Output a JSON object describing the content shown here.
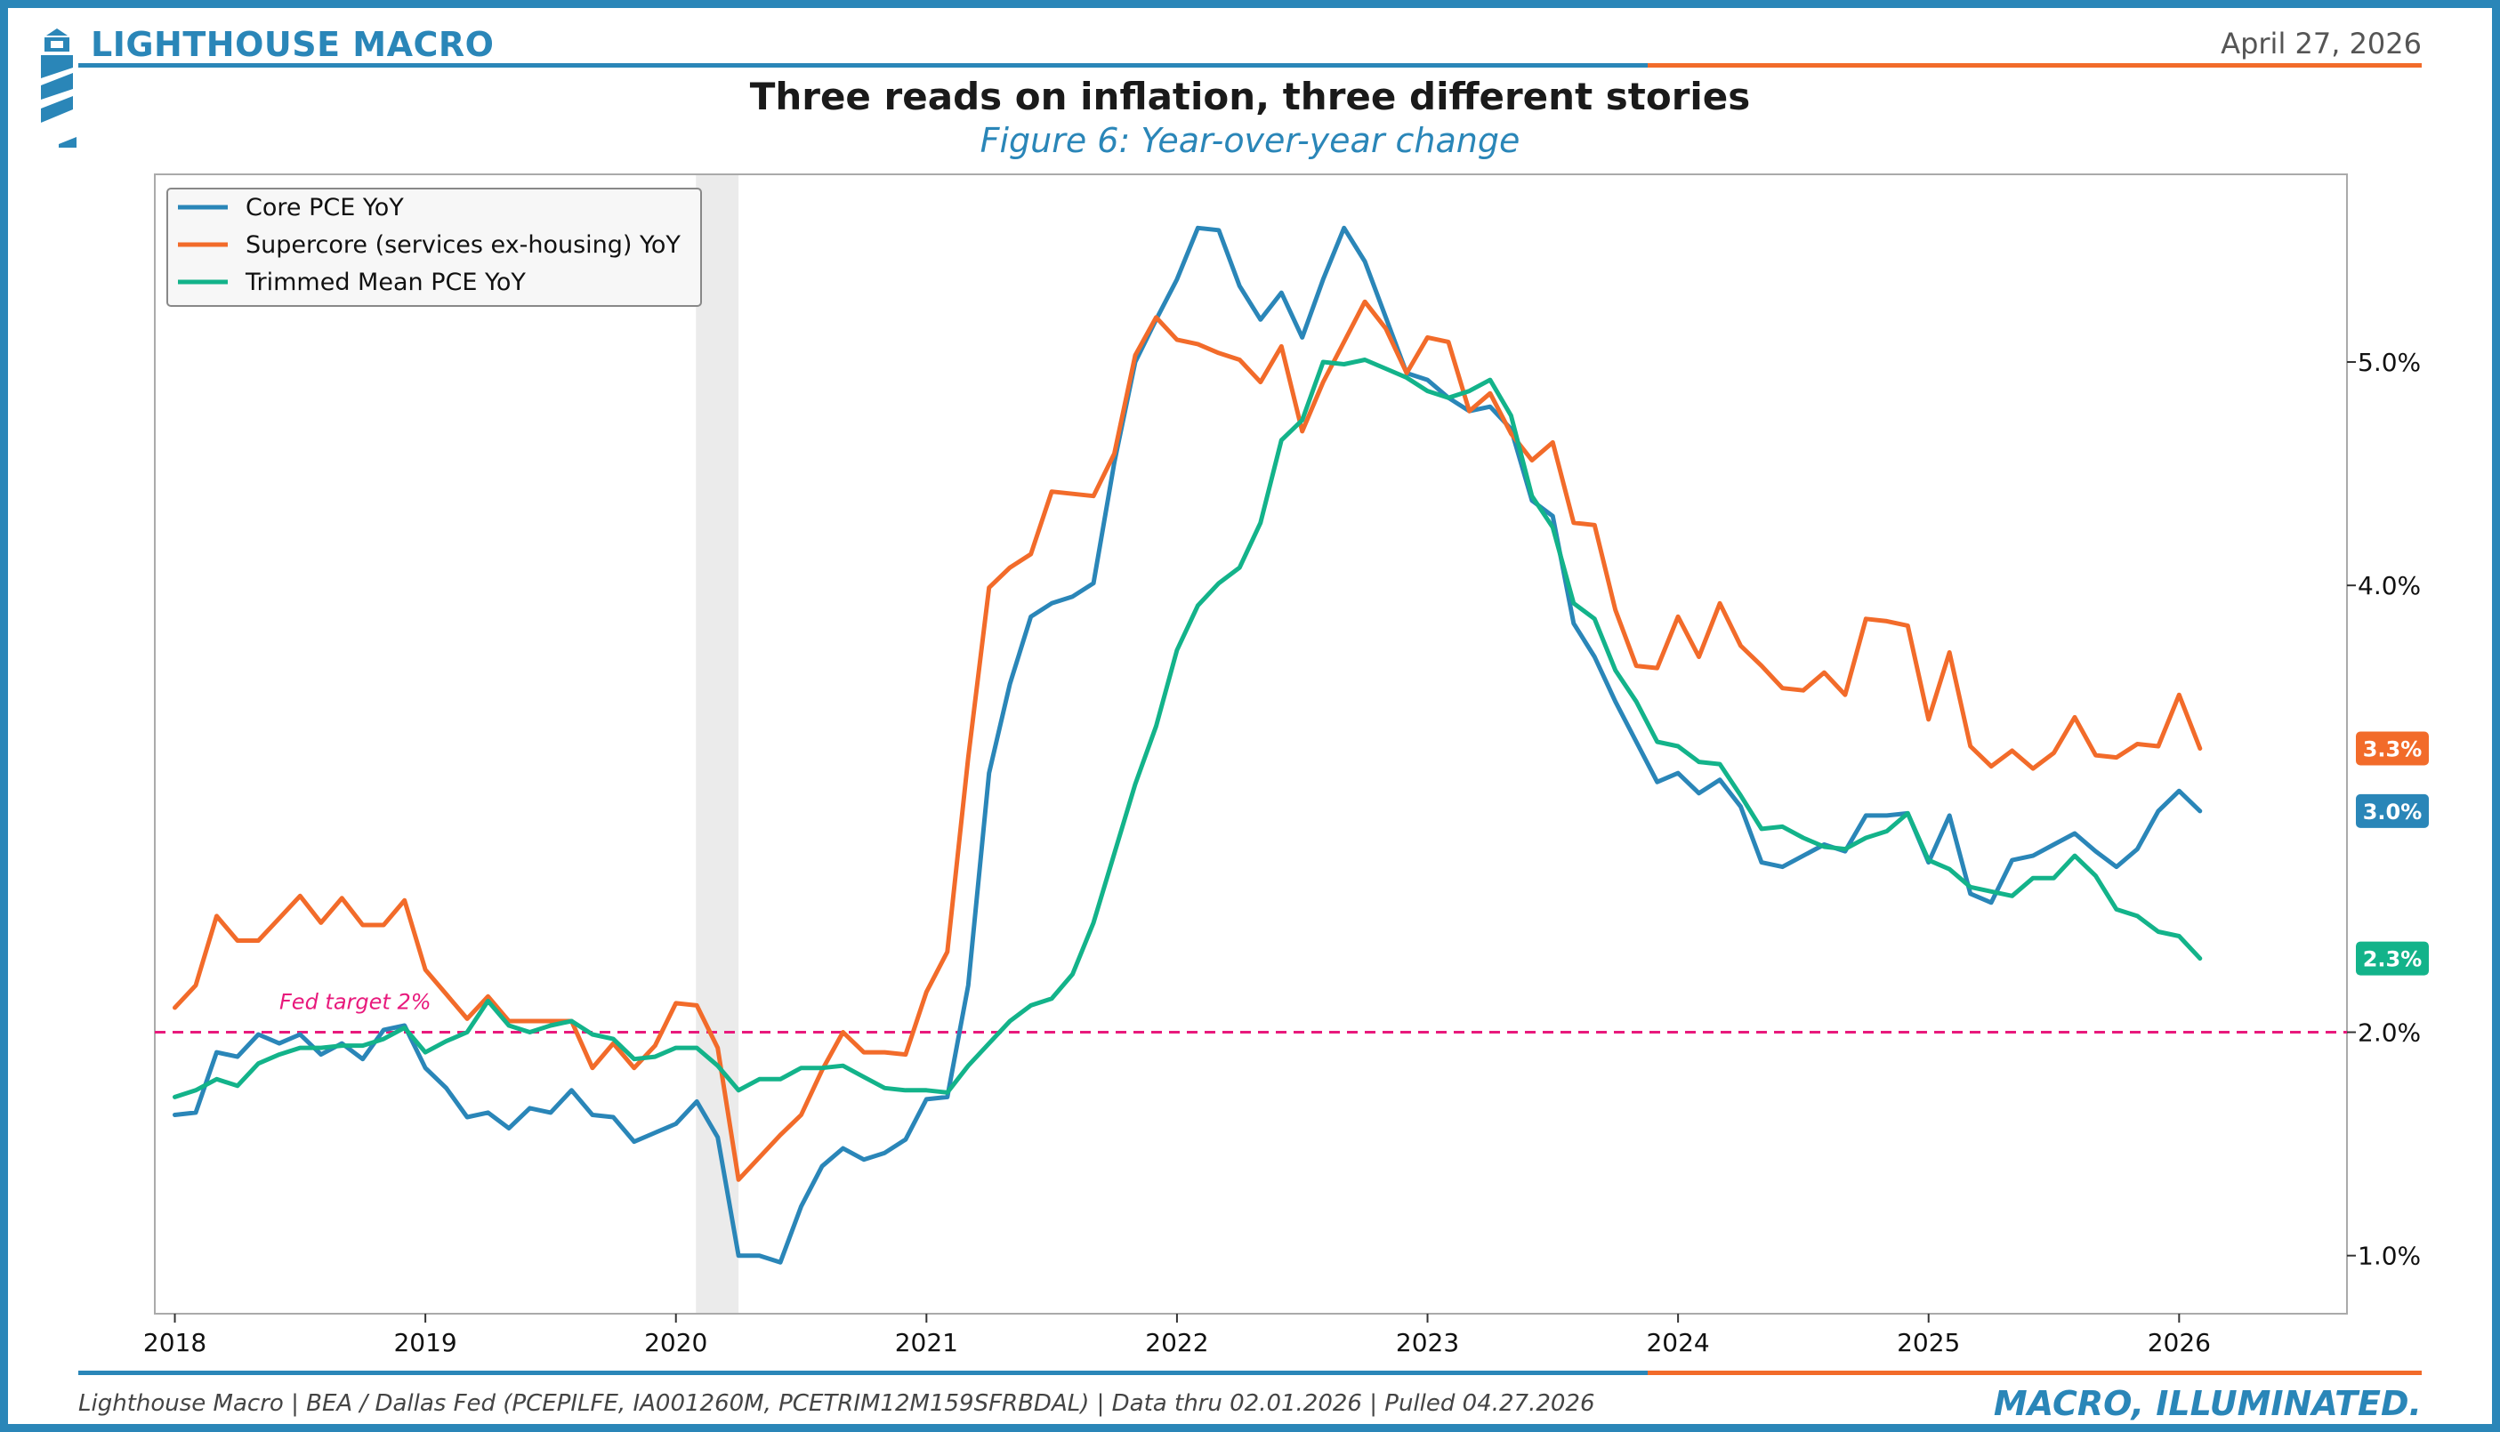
{
  "header": {
    "brand": "LIGHTHOUSE MACRO",
    "date": "April 27, 2026",
    "title": "Three reads on inflation, three different stories",
    "subtitle": "Figure 6: Year-over-year change"
  },
  "footer": {
    "source": "Lighthouse Macro | BEA / Dallas Fed (PCEPILFE, IA001260M, PCETRIM12M159SFRBDAL) | Data thru 02.01.2026 | Pulled 04.27.2026",
    "tagline": "MACRO, ILLUMINATED."
  },
  "colors": {
    "brand_blue": "#2a86b8",
    "brand_orange": "#f26b2a",
    "green": "#13b38a",
    "target_pink": "#e8197c",
    "recession_shade": "#ebebeb"
  },
  "icons": {
    "logo": "lighthouse-icon"
  },
  "chart_data": {
    "type": "line",
    "title": "Three reads on inflation, three different stories",
    "subtitle": "Figure 6: Year-over-year change",
    "xlabel": "",
    "ylabel": "",
    "x_start": "2018-01",
    "frequency": "monthly",
    "xlim": [
      2017.92,
      2026.67
    ],
    "ylim": [
      0.74,
      5.84
    ],
    "x_ticks": [
      {
        "value": 2018,
        "label": "2018"
      },
      {
        "value": 2019,
        "label": "2019"
      },
      {
        "value": 2020,
        "label": "2020"
      },
      {
        "value": 2021,
        "label": "2021"
      },
      {
        "value": 2022,
        "label": "2022"
      },
      {
        "value": 2023,
        "label": "2023"
      },
      {
        "value": 2024,
        "label": "2024"
      },
      {
        "value": 2025,
        "label": "2025"
      },
      {
        "value": 2026,
        "label": "2026"
      }
    ],
    "y_ticks": [
      {
        "value": 1.0,
        "label": "1.0%"
      },
      {
        "value": 2.0,
        "label": "2.0%"
      },
      {
        "value": 4.0,
        "label": "4.0%"
      },
      {
        "value": 5.0,
        "label": "5.0%"
      }
    ],
    "y_axis_side": "right",
    "grid": false,
    "legend_position": "top-left",
    "recession": {
      "start": 2020.08,
      "end": 2020.25
    },
    "reference_line": {
      "value": 2.0,
      "label": "Fed target 2%"
    },
    "series": [
      {
        "name": "Core PCE YoY",
        "color": "#2a86b8",
        "last_label": "3.0%",
        "values": [
          1.63,
          1.64,
          1.91,
          1.89,
          1.99,
          1.95,
          1.99,
          1.9,
          1.95,
          1.88,
          2.01,
          2.03,
          1.84,
          1.75,
          1.62,
          1.64,
          1.57,
          1.66,
          1.64,
          1.74,
          1.63,
          1.62,
          1.51,
          1.55,
          1.59,
          1.69,
          1.53,
          1.0,
          1.0,
          0.97,
          1.22,
          1.4,
          1.48,
          1.43,
          1.46,
          1.52,
          1.7,
          1.71,
          2.21,
          3.16,
          3.56,
          3.86,
          3.92,
          3.95,
          4.01,
          4.55,
          5.0,
          5.19,
          5.37,
          5.6,
          5.59,
          5.34,
          5.19,
          5.31,
          5.11,
          5.37,
          5.6,
          5.45,
          5.2,
          4.95,
          4.92,
          4.84,
          4.78,
          4.8,
          4.7,
          4.38,
          4.31,
          3.83,
          3.68,
          3.48,
          3.3,
          3.12,
          3.16,
          3.07,
          3.13,
          3.01,
          2.76,
          2.74,
          2.79,
          2.84,
          2.81,
          2.97,
          2.97,
          2.98,
          2.76,
          2.97,
          2.62,
          2.58,
          2.77,
          2.79,
          2.84,
          2.89,
          2.81,
          2.74,
          2.82,
          2.99,
          3.08,
          2.99
        ]
      },
      {
        "name": "Supercore (services ex-housing) YoY",
        "color": "#f26b2a",
        "last_label": "3.3%",
        "values": [
          2.11,
          2.21,
          2.52,
          2.41,
          2.41,
          2.51,
          2.61,
          2.49,
          2.6,
          2.48,
          2.48,
          2.59,
          2.28,
          2.17,
          2.06,
          2.16,
          2.05,
          2.05,
          2.05,
          2.05,
          1.84,
          1.95,
          1.84,
          1.94,
          2.13,
          2.12,
          1.93,
          1.34,
          1.44,
          1.54,
          1.63,
          1.83,
          2.0,
          1.91,
          1.91,
          1.9,
          2.18,
          2.36,
          3.23,
          3.99,
          4.08,
          4.14,
          4.42,
          4.41,
          4.4,
          4.59,
          5.03,
          5.2,
          5.1,
          5.08,
          5.04,
          5.01,
          4.91,
          5.07,
          4.69,
          4.91,
          5.09,
          5.27,
          5.15,
          4.95,
          5.11,
          5.09,
          4.78,
          4.86,
          4.68,
          4.56,
          4.64,
          4.28,
          4.27,
          3.89,
          3.64,
          3.63,
          3.86,
          3.68,
          3.92,
          3.73,
          3.64,
          3.54,
          3.53,
          3.61,
          3.51,
          3.85,
          3.84,
          3.82,
          3.4,
          3.7,
          3.28,
          3.19,
          3.26,
          3.18,
          3.25,
          3.41,
          3.24,
          3.23,
          3.29,
          3.28,
          3.51,
          3.27
        ]
      },
      {
        "name": "Trimmed Mean PCE YoY",
        "color": "#13b38a",
        "last_label": "2.3%",
        "values": [
          1.71,
          1.74,
          1.79,
          1.76,
          1.86,
          1.9,
          1.93,
          1.93,
          1.94,
          1.94,
          1.97,
          2.02,
          1.91,
          1.96,
          2.0,
          2.14,
          2.03,
          2.0,
          2.03,
          2.05,
          1.99,
          1.97,
          1.88,
          1.89,
          1.93,
          1.93,
          1.85,
          1.74,
          1.79,
          1.79,
          1.84,
          1.84,
          1.85,
          1.8,
          1.75,
          1.74,
          1.74,
          1.73,
          1.85,
          1.95,
          2.05,
          2.12,
          2.15,
          2.26,
          2.49,
          2.8,
          3.11,
          3.37,
          3.71,
          3.91,
          4.01,
          4.08,
          4.28,
          4.65,
          4.74,
          5.0,
          4.99,
          5.01,
          4.97,
          4.93,
          4.87,
          4.84,
          4.87,
          4.92,
          4.76,
          4.4,
          4.26,
          3.92,
          3.85,
          3.62,
          3.48,
          3.3,
          3.28,
          3.21,
          3.2,
          3.06,
          2.91,
          2.92,
          2.87,
          2.83,
          2.82,
          2.87,
          2.9,
          2.98,
          2.77,
          2.73,
          2.65,
          2.63,
          2.61,
          2.69,
          2.69,
          2.79,
          2.7,
          2.55,
          2.52,
          2.45,
          2.43,
          2.33
        ]
      }
    ]
  }
}
